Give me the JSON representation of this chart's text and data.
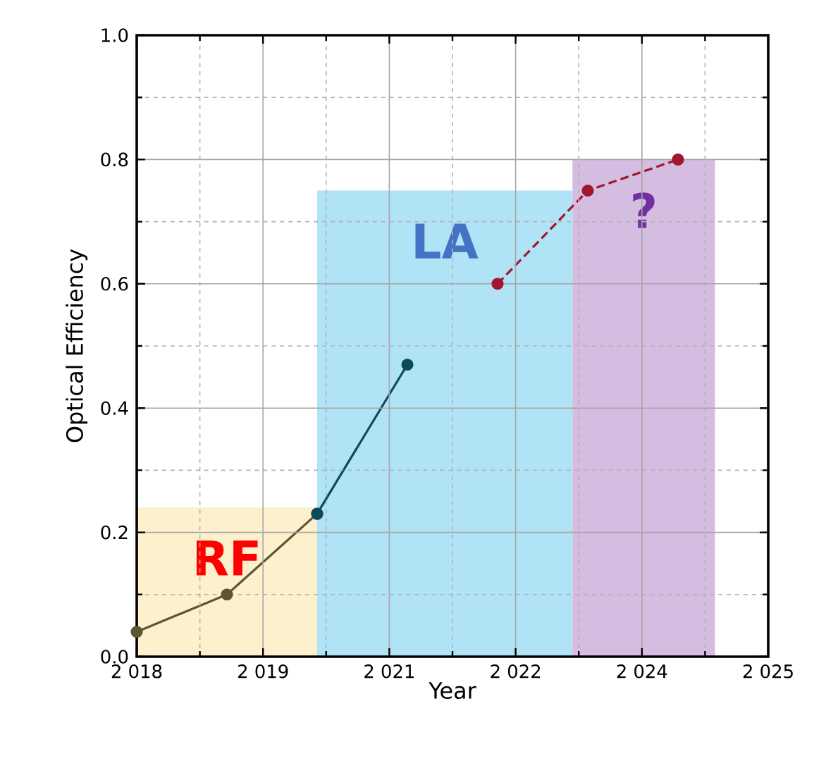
{
  "chart_data": {
    "type": "line",
    "xlabel": "Year",
    "ylabel": "Optical Efficiency",
    "xlim": [
      2018,
      2025
    ],
    "ylim": [
      0,
      1
    ],
    "xticks": [
      {
        "value": 2018,
        "label": "2 018"
      },
      {
        "value": 2019.4,
        "label": "2 019"
      },
      {
        "value": 2020.8,
        "label": "2 021"
      },
      {
        "value": 2022.2,
        "label": "2 022"
      },
      {
        "value": 2023.6,
        "label": "2 024"
      },
      {
        "value": 2025,
        "label": "2 025"
      }
    ],
    "yticks": [
      {
        "value": 0,
        "label": "0.0"
      },
      0.2,
      0.4,
      0.6,
      0.8,
      {
        "value": 1,
        "label": "1.0"
      }
    ],
    "grid": true,
    "series": [
      {
        "type": "area",
        "name": "RF",
        "x": [
          2018,
          2020
        ],
        "values": [
          0.24,
          0.24
        ],
        "color": "#fdf0cc"
      },
      {
        "type": "area",
        "name": "LA",
        "x": [
          2020,
          2022.83
        ],
        "values": [
          0.75,
          0.75
        ],
        "color": "#b0e3f6"
      },
      {
        "type": "area",
        "name": "?",
        "x": [
          2022.83,
          2024.41
        ],
        "values": [
          0.8,
          0.8
        ],
        "color": "#d4bde0"
      },
      {
        "x": [
          2018,
          2019,
          2020
        ],
        "values": [
          0.04,
          0.1,
          0.23
        ],
        "color": "#5e5535",
        "marker": "circle",
        "line_style": "solid"
      },
      {
        "x": [
          2020,
          2021
        ],
        "values": [
          0.23,
          0.47
        ],
        "color": "#0d4a5a",
        "marker": "circle",
        "line_style": "solid"
      },
      {
        "x": [
          2022,
          2023,
          2024
        ],
        "values": [
          0.6,
          0.75,
          0.8
        ],
        "color": "#a0172e",
        "marker": "circle",
        "line_style": "dashed"
      }
    ]
  }
}
